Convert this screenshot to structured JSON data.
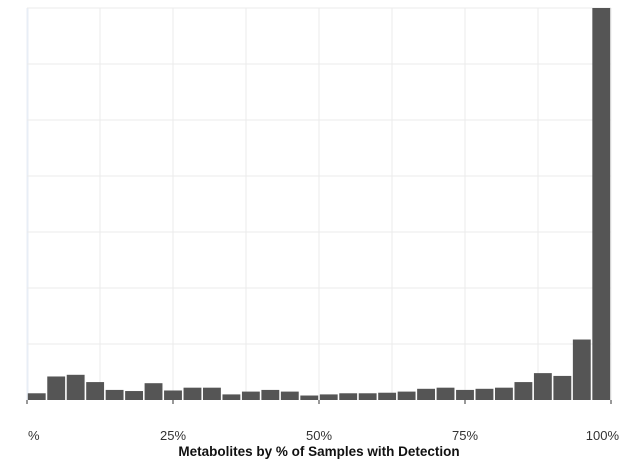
{
  "chart_data": {
    "type": "bar",
    "title": "",
    "xlabel": "Metabolites by % of Samples with Detection",
    "ylabel": "",
    "x_tick_labels": [
      "%",
      "25%",
      "50%",
      "75%",
      "100%"
    ],
    "x_tick_values": [
      0,
      25,
      50,
      75,
      100
    ],
    "xlim": [
      0,
      100
    ],
    "ylim": [
      0,
      7
    ],
    "bin_width": 3.33,
    "values": [
      0.12,
      0.42,
      0.45,
      0.32,
      0.18,
      0.16,
      0.3,
      0.17,
      0.22,
      0.22,
      0.1,
      0.15,
      0.18,
      0.15,
      0.08,
      0.1,
      0.12,
      0.12,
      0.13,
      0.15,
      0.2,
      0.22,
      0.18,
      0.2,
      0.22,
      0.32,
      0.48,
      0.43,
      1.08,
      7.0
    ],
    "bar_color": "#555555",
    "grid": true
  }
}
